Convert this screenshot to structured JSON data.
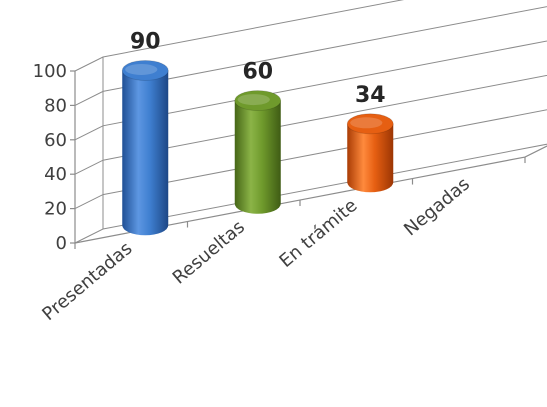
{
  "chart_data": {
    "type": "bar",
    "style": "3d-cylinder",
    "categories": [
      "Presentadas",
      "Resueltas",
      "En trámite",
      "Negadas"
    ],
    "values": [
      90,
      60,
      34,
      null
    ],
    "data_labels": [
      "90",
      "60",
      "34",
      ""
    ],
    "yticks": [
      "0",
      "20",
      "40",
      "60",
      "80",
      "100"
    ],
    "ylim": [
      0,
      100
    ],
    "grid": true,
    "legend": false,
    "colors": [
      "#3f7fd0",
      "#6f9a2c",
      "#e65f12",
      null
    ]
  }
}
